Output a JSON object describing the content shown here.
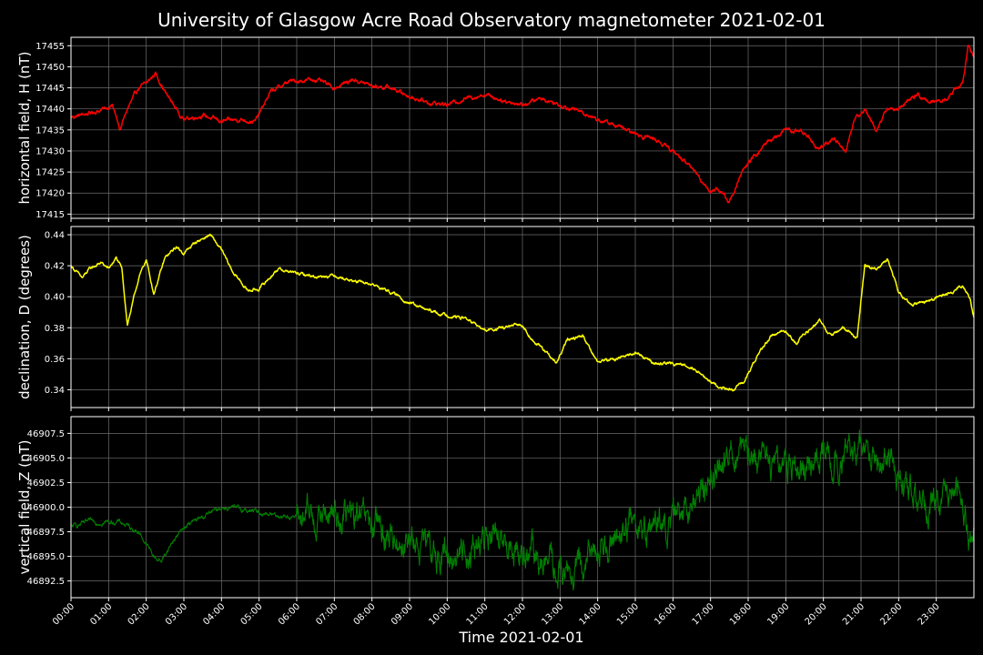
{
  "title": "University of Glasgow Acre Road Observatory magnetometer 2021-02-01",
  "xlabel": "Time 2021-02-01",
  "x_ticks": [
    "00:00",
    "01:00",
    "02:00",
    "03:00",
    "04:00",
    "05:00",
    "06:00",
    "07:00",
    "08:00",
    "09:00",
    "10:00",
    "11:00",
    "12:00",
    "13:00",
    "14:00",
    "15:00",
    "16:00",
    "17:00",
    "18:00",
    "19:00",
    "20:00",
    "21:00",
    "22:00",
    "23:00"
  ],
  "chart_data": [
    {
      "type": "line",
      "ylabel": "horizontal field, H (nT)",
      "color": "#ff0000",
      "xlim": [
        0,
        24
      ],
      "ylim": [
        17414,
        17457
      ],
      "yticks": [
        17415,
        17420,
        17425,
        17430,
        17435,
        17440,
        17445,
        17450,
        17455
      ],
      "ytick_labels": [
        "17415",
        "17420",
        "17425",
        "17430",
        "17435",
        "17440",
        "17445",
        "17450",
        "17455"
      ],
      "noise": 0.6,
      "grid": true,
      "x": [
        0,
        0.5,
        0.9,
        1.1,
        1.3,
        1.5,
        1.8,
        2.0,
        2.25,
        2.5,
        2.8,
        3.0,
        3.5,
        4.0,
        4.5,
        4.9,
        5.3,
        5.8,
        6.5,
        7.0,
        7.5,
        8.0,
        8.5,
        9.0,
        9.5,
        10.0,
        10.5,
        11.0,
        11.5,
        12.0,
        12.5,
        13.0,
        13.5,
        14.0,
        14.5,
        15.0,
        15.5,
        16.0,
        16.5,
        17.0,
        17.2,
        17.5,
        17.9,
        18.5,
        19.0,
        19.5,
        19.8,
        20.0,
        20.3,
        20.6,
        20.8,
        21.1,
        21.4,
        21.7,
        22.0,
        22.5,
        22.8,
        23.0,
        23.3,
        23.5,
        23.7,
        23.85,
        24.0
      ],
      "y": [
        17438,
        17439,
        17440,
        17441,
        17435,
        17440,
        17445,
        17446,
        17448.5,
        17444,
        17440,
        17437.5,
        17438.5,
        17437,
        17437.5,
        17437,
        17444,
        17446.5,
        17447,
        17445,
        17447,
        17445.5,
        17445,
        17443,
        17441.5,
        17441,
        17442.5,
        17443.5,
        17442,
        17441,
        17442.5,
        17441,
        17439.5,
        17437.5,
        17436,
        17434,
        17433,
        17430,
        17426,
        17420.5,
        17421,
        17418,
        17426,
        17432,
        17435,
        17434.5,
        17431,
        17431,
        17433,
        17430,
        17437,
        17440,
        17435,
        17440,
        17440,
        17443.5,
        17441.5,
        17442,
        17442.5,
        17444.5,
        17446,
        17455,
        17452.5
      ]
    },
    {
      "type": "line",
      "ylabel": "declination, D (degrees)",
      "color": "#ffff00",
      "xlim": [
        0,
        24
      ],
      "ylim": [
        0.3285,
        0.4453
      ],
      "yticks": [
        0.34,
        0.36,
        0.38,
        0.4,
        0.42,
        0.44
      ],
      "ytick_labels": [
        "0.34",
        "0.36",
        "0.38",
        "0.40",
        "0.42",
        "0.44"
      ],
      "noise": 0.0012,
      "grid": true,
      "x": [
        0,
        0.3,
        0.5,
        0.8,
        1.0,
        1.2,
        1.35,
        1.5,
        1.8,
        2.0,
        2.2,
        2.5,
        2.8,
        3.0,
        3.3,
        3.7,
        4.0,
        4.3,
        4.7,
        5.0,
        5.5,
        6.0,
        6.5,
        7.0,
        7.5,
        8.0,
        8.5,
        9.0,
        9.5,
        10.0,
        10.5,
        11.0,
        11.5,
        12.0,
        12.3,
        12.6,
        12.9,
        13.2,
        13.6,
        14.0,
        14.5,
        15.0,
        15.5,
        16.0,
        16.5,
        17.0,
        17.3,
        17.6,
        17.9,
        18.2,
        18.6,
        19.0,
        19.3,
        19.6,
        19.9,
        20.2,
        20.5,
        20.9,
        21.1,
        21.4,
        21.7,
        22.0,
        22.3,
        22.6,
        23.0,
        23.4,
        23.7,
        23.9,
        24.0
      ],
      "y": [
        0.42,
        0.412,
        0.418,
        0.422,
        0.418,
        0.425,
        0.418,
        0.382,
        0.412,
        0.424,
        0.402,
        0.425,
        0.432,
        0.428,
        0.435,
        0.44,
        0.43,
        0.416,
        0.404,
        0.405,
        0.418,
        0.415,
        0.413,
        0.414,
        0.41,
        0.408,
        0.403,
        0.396,
        0.391,
        0.388,
        0.386,
        0.378,
        0.38,
        0.382,
        0.371,
        0.365,
        0.357,
        0.372,
        0.375,
        0.358,
        0.36,
        0.364,
        0.357,
        0.357,
        0.355,
        0.345,
        0.341,
        0.34,
        0.345,
        0.36,
        0.375,
        0.378,
        0.37,
        0.378,
        0.385,
        0.374,
        0.38,
        0.374,
        0.42,
        0.418,
        0.424,
        0.403,
        0.396,
        0.395,
        0.4,
        0.403,
        0.408,
        0.398,
        0.386
      ]
    },
    {
      "type": "line",
      "ylabel": "vertical field, Z (nT)",
      "color": "#008000",
      "xlim": [
        0,
        24
      ],
      "ylim": [
        46890.8,
        46909.2
      ],
      "yticks": [
        46892.5,
        46895.0,
        46897.5,
        46900.0,
        46902.5,
        46905.0,
        46907.5
      ],
      "ytick_labels": [
        "46892.5",
        "46895.0",
        "46897.5",
        "46900.0",
        "46902.5",
        "46905.0",
        "46907.5"
      ],
      "noise": 0.9,
      "grid": true,
      "x": [
        0,
        0.5,
        1.0,
        1.3,
        1.8,
        2.2,
        2.4,
        2.7,
        3.0,
        3.5,
        4.0,
        4.5,
        5.0,
        5.5,
        6.0,
        6.5,
        7.0,
        7.5,
        8.0,
        8.5,
        9.0,
        9.5,
        10.0,
        10.5,
        11.0,
        11.5,
        12.0,
        12.5,
        13.0,
        13.3,
        13.6,
        14.0,
        14.5,
        15.0,
        15.5,
        16.0,
        16.5,
        17.0,
        17.3,
        17.6,
        18.0,
        18.5,
        19.0,
        19.5,
        20.0,
        20.5,
        21.0,
        21.5,
        21.8,
        22.0,
        22.3,
        22.7,
        23.0,
        23.4,
        23.7,
        23.85,
        24.0
      ],
      "y": [
        46898.0,
        46898.5,
        46898.5,
        46898.5,
        46897.5,
        46895.0,
        46894.5,
        46896.5,
        46898.0,
        46899.0,
        46900.0,
        46899.8,
        46899.5,
        46899.2,
        46899.0,
        46899.0,
        46899.3,
        46899.0,
        46898.0,
        46897.0,
        46896.5,
        46895.5,
        46895.0,
        46895.5,
        46896.8,
        46896.0,
        46895.5,
        46894.5,
        46893.5,
        46893.0,
        46893.8,
        46896.0,
        46897.5,
        46898.5,
        46898.0,
        46898.0,
        46900.5,
        46903.0,
        46905.0,
        46905.5,
        46905.0,
        46904.5,
        46904.5,
        46904.8,
        46905.5,
        46905.0,
        46905.5,
        46905.0,
        46905.0,
        46903.0,
        46901.5,
        46900.5,
        46900.5,
        46900.0,
        46900.5,
        46897.5,
        46898.0
      ]
    }
  ]
}
